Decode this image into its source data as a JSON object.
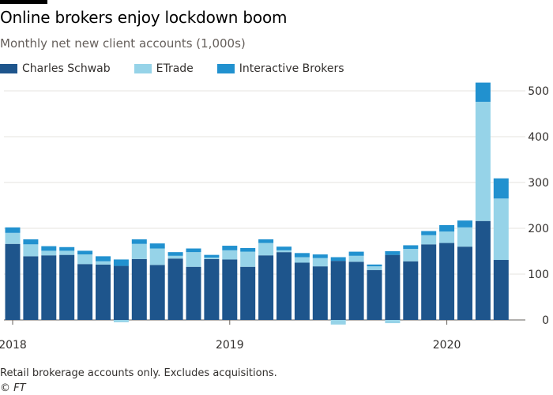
{
  "header": {
    "title": "Online brokers enjoy lockdown boom",
    "subtitle": "Monthly net new client accounts (1,000s)"
  },
  "footer": {
    "note": "Retail brokerage accounts only. Excludes acquisitions.",
    "source": "© FT"
  },
  "colors": {
    "schwab": "#1e558c",
    "etrade": "#96d3e8",
    "ib": "#2191cf",
    "grid": "#e6e3df",
    "axis": "#66605c"
  },
  "chart_data": {
    "type": "bar",
    "stacked": true,
    "title": "Online brokers enjoy lockdown boom",
    "subtitle": "Monthly net new client accounts (1,000s)",
    "xlabel": "",
    "ylabel": "",
    "ylim": [
      -10,
      520
    ],
    "yticks": [
      0,
      100,
      200,
      300,
      400,
      500
    ],
    "xtick_labels": [
      {
        "index": 0,
        "label": "2018"
      },
      {
        "index": 12,
        "label": "2019"
      },
      {
        "index": 24,
        "label": "2020"
      }
    ],
    "grid": true,
    "legend_position": "top-left",
    "categories": [
      "Jan 2018",
      "Feb 2018",
      "Mar 2018",
      "Apr 2018",
      "May 2018",
      "Jun 2018",
      "Jul 2018",
      "Aug 2018",
      "Sep 2018",
      "Oct 2018",
      "Nov 2018",
      "Dec 2018",
      "Jan 2019",
      "Feb 2019",
      "Mar 2019",
      "Apr 2019",
      "May 2019",
      "Jun 2019",
      "Jul 2019",
      "Aug 2019",
      "Sep 2019",
      "Oct 2019",
      "Nov 2019",
      "Dec 2019",
      "Jan 2020",
      "Feb 2020",
      "Mar 2020",
      "Apr 2020"
    ],
    "series": [
      {
        "name": "Charles Schwab",
        "values": [
          166,
          139,
          141,
          142,
          122,
          121,
          118,
          133,
          120,
          134,
          116,
          133,
          132,
          116,
          141,
          148,
          125,
          117,
          129,
          127,
          109,
          142,
          128,
          165,
          168,
          160,
          216,
          131
        ]
      },
      {
        "name": "ETrade",
        "values": [
          24,
          26,
          10,
          9,
          21,
          7,
          -5,
          33,
          36,
          6,
          32,
          3,
          20,
          33,
          27,
          4,
          12,
          18,
          -10,
          13,
          8,
          -7,
          27,
          20,
          25,
          42,
          260,
          134
        ]
      },
      {
        "name": "Interactive Brokers",
        "values": [
          12,
          11,
          10,
          8,
          8,
          11,
          14,
          10,
          11,
          8,
          8,
          6,
          10,
          8,
          8,
          8,
          9,
          8,
          8,
          9,
          4,
          8,
          8,
          9,
          14,
          15,
          42,
          44
        ]
      }
    ]
  }
}
